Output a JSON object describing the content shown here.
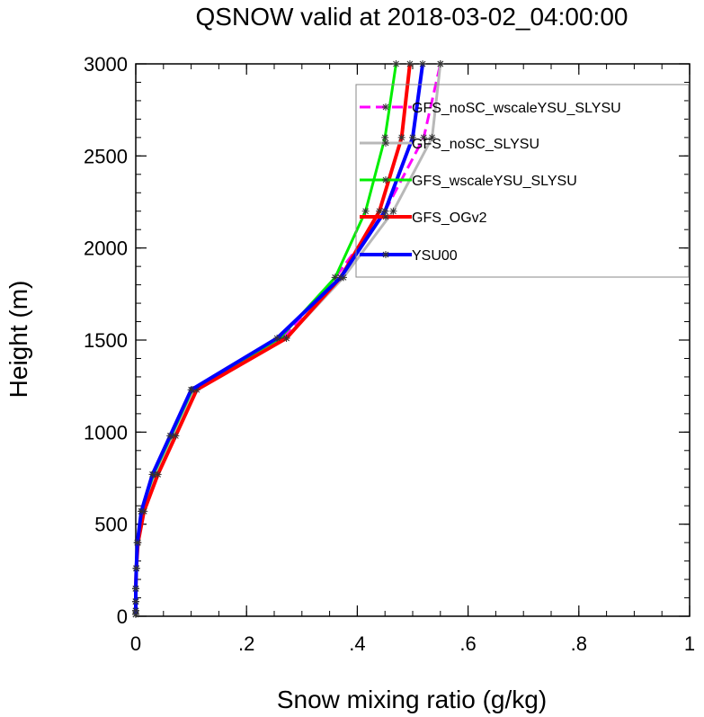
{
  "chart_data": {
    "type": "line",
    "title": "QSNOW valid at 2018-03-02_04:00:00",
    "xlabel": "Snow mixing ratio (g/kg)",
    "ylabel": "Height (m)",
    "xlim": [
      0,
      1
    ],
    "ylim": [
      0,
      3000
    ],
    "xticks": [
      0,
      0.2,
      0.4,
      0.6,
      0.8,
      1
    ],
    "xtick_labels": [
      "0",
      ".2",
      ".4",
      ".6",
      ".8",
      "1"
    ],
    "yticks": [
      0,
      500,
      1000,
      1500,
      2000,
      2500,
      3000
    ],
    "ytick_labels": [
      "0",
      "500",
      "1000",
      "1500",
      "2000",
      "2500",
      "3000"
    ],
    "grid": false,
    "legend_position": "top-right",
    "levels": [
      10,
      30,
      80,
      150,
      260,
      400,
      570,
      770,
      980,
      1230,
      1510,
      1840,
      2200,
      2600,
      3000
    ],
    "series": [
      {
        "name": "GFS_noSC_wscaleYSU_SLYSU",
        "color": "#ff00ff",
        "dashed": true,
        "width": 3,
        "values": [
          0,
          0,
          0,
          0,
          0.001,
          0.003,
          0.011,
          0.033,
          0.066,
          0.104,
          0.265,
          0.36,
          0.45,
          0.52,
          0.55
        ]
      },
      {
        "name": "GFS_noSC_SLYSU",
        "color": "#b8b8b8",
        "dashed": false,
        "width": 3,
        "values": [
          0,
          0,
          0,
          0,
          0.001,
          0.003,
          0.011,
          0.034,
          0.068,
          0.105,
          0.272,
          0.375,
          0.465,
          0.535,
          0.55
        ]
      },
      {
        "name": "GFS_wscaleYSU_SLYSU",
        "color": "#00ee00",
        "dashed": false,
        "width": 3,
        "values": [
          0,
          0,
          0,
          0,
          0.001,
          0.003,
          0.01,
          0.032,
          0.064,
          0.102,
          0.26,
          0.36,
          0.415,
          0.45,
          0.47
        ]
      },
      {
        "name": "GFS_OGv2",
        "color": "#ff0000",
        "dashed": false,
        "width": 4,
        "values": [
          0,
          0,
          0,
          0,
          0.001,
          0.004,
          0.015,
          0.04,
          0.072,
          0.11,
          0.272,
          0.37,
          0.44,
          0.48,
          0.495
        ]
      },
      {
        "name": "YSU00",
        "color": "#0000ff",
        "dashed": false,
        "width": 4,
        "values": [
          0,
          0,
          0,
          0,
          0.001,
          0.003,
          0.01,
          0.03,
          0.062,
          0.1,
          0.255,
          0.37,
          0.45,
          0.5,
          0.518
        ]
      }
    ]
  }
}
